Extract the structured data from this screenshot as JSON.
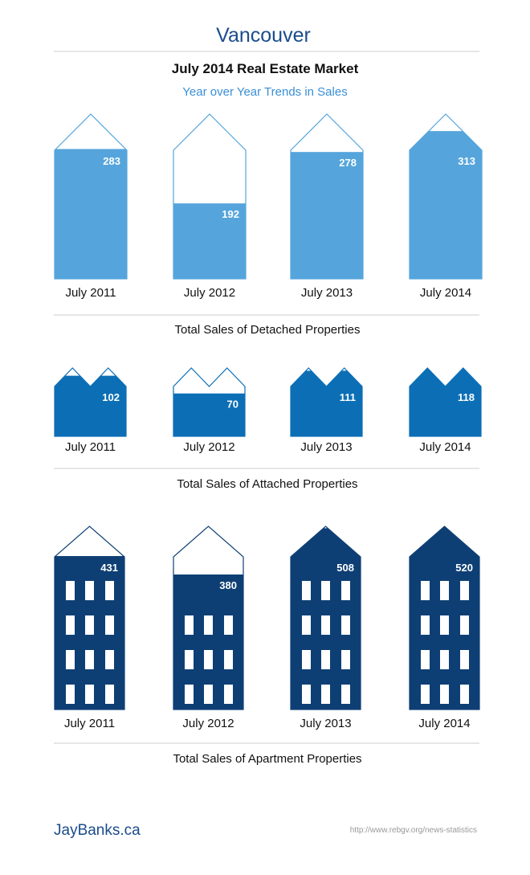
{
  "header": {
    "city": "Vancouver",
    "title": "July 2014 Real Estate Market",
    "subtitle": "Year over Year Trends in Sales"
  },
  "footer": {
    "brand": "JayBanks.ca",
    "source": "http://www.rebgv.org/news-statistics"
  },
  "colors": {
    "header_city": "#1b4c8c",
    "subtitle": "#3a8fd6",
    "detached": "#55a5dc",
    "attached": "#0c6fb6",
    "apartment": "#0e3f74"
  },
  "chart_data": [
    {
      "type": "bar",
      "shape": "house",
      "title": "Total Sales of Detached Properties",
      "categories": [
        "July 2011",
        "July 2012",
        "July 2013",
        "July 2014"
      ],
      "values": [
        283,
        192,
        278,
        313
      ]
    },
    {
      "type": "bar",
      "shape": "townhouse",
      "title": "Total Sales of Attached Properties",
      "categories": [
        "July 2011",
        "July 2012",
        "July 2013",
        "July 2014"
      ],
      "values": [
        102,
        70,
        111,
        118
      ]
    },
    {
      "type": "bar",
      "shape": "apartment",
      "title": "Total Sales of Apartment Properties",
      "categories": [
        "July 2011",
        "July 2012",
        "July 2013",
        "July 2014"
      ],
      "values": [
        431,
        380,
        508,
        520
      ]
    }
  ]
}
